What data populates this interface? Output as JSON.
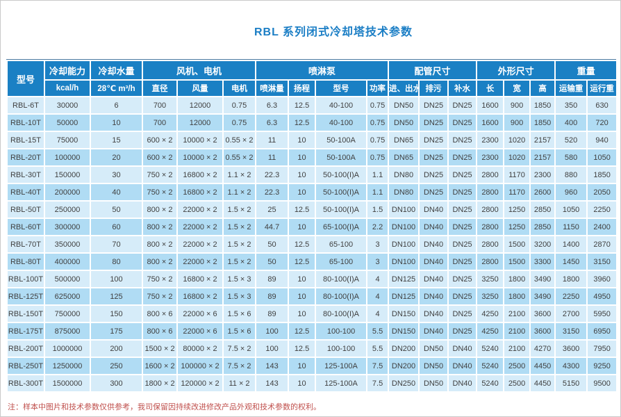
{
  "page": {
    "title": "RBL 系列闭式冷却塔技术参数",
    "footnote": "注：样本中图片和技术参数仅供参考，我司保留因持续改进修改产品外观和技术参数的权利。"
  },
  "colors": {
    "header_bg": "#1a80c4",
    "row_light": "#d6ecf9",
    "row_dark": "#b0dcf4",
    "title_text": "#1b7ec5",
    "note_text": "#c0504d"
  },
  "table": {
    "header_groups": [
      {
        "label": "型号",
        "colspan": 1,
        "rowspan": 2
      },
      {
        "label": "冷却能力",
        "colspan": 1,
        "rowspan": 1
      },
      {
        "label": "冷却水量",
        "colspan": 1,
        "rowspan": 1
      },
      {
        "label": "风机、电机",
        "colspan": 3,
        "rowspan": 1
      },
      {
        "label": "喷淋泵",
        "colspan": 4,
        "rowspan": 1
      },
      {
        "label": "配管尺寸",
        "colspan": 3,
        "rowspan": 1
      },
      {
        "label": "外形尺寸",
        "colspan": 3,
        "rowspan": 1
      },
      {
        "label": "重量",
        "colspan": 2,
        "rowspan": 1
      }
    ],
    "header_subs": [
      "kcal/h",
      "28℃ m³/h",
      "直径",
      "风量",
      "电机",
      "喷淋量",
      "扬程",
      "型号",
      "功率",
      "进、出水",
      "排污",
      "补水",
      "长",
      "宽",
      "高",
      "运输重",
      "运行重"
    ],
    "rows": [
      [
        "RBL-6T",
        "30000",
        "6",
        "700",
        "12000",
        "0.75",
        "6.3",
        "12.5",
        "40-100",
        "0.75",
        "DN50",
        "DN25",
        "DN25",
        "1600",
        "900",
        "1850",
        "350",
        "630"
      ],
      [
        "RBL-10T",
        "50000",
        "10",
        "700",
        "12000",
        "0.75",
        "6.3",
        "12.5",
        "40-100",
        "0.75",
        "DN50",
        "DN25",
        "DN25",
        "1600",
        "900",
        "1850",
        "400",
        "720"
      ],
      [
        "RBL-15T",
        "75000",
        "15",
        "600 × 2",
        "10000 × 2",
        "0.55 × 2",
        "11",
        "10",
        "50-100A",
        "0.75",
        "DN65",
        "DN25",
        "DN25",
        "2300",
        "1020",
        "2157",
        "520",
        "940"
      ],
      [
        "RBL-20T",
        "100000",
        "20",
        "600 × 2",
        "10000 × 2",
        "0.55 × 2",
        "11",
        "10",
        "50-100A",
        "0.75",
        "DN65",
        "DN25",
        "DN25",
        "2300",
        "1020",
        "2157",
        "580",
        "1050"
      ],
      [
        "RBL-30T",
        "150000",
        "30",
        "750 × 2",
        "16800 × 2",
        "1.1 × 2",
        "22.3",
        "10",
        "50-100(I)A",
        "1.1",
        "DN80",
        "DN25",
        "DN25",
        "2800",
        "1170",
        "2300",
        "880",
        "1850"
      ],
      [
        "RBL-40T",
        "200000",
        "40",
        "750 × 2",
        "16800 × 2",
        "1.1 × 2",
        "22.3",
        "10",
        "50-100(I)A",
        "1.1",
        "DN80",
        "DN25",
        "DN25",
        "2800",
        "1170",
        "2600",
        "960",
        "2050"
      ],
      [
        "RBL-50T",
        "250000",
        "50",
        "800 × 2",
        "22000 × 2",
        "1.5 × 2",
        "25",
        "12.5",
        "50-100(I)A",
        "1.5",
        "DN100",
        "DN40",
        "DN25",
        "2800",
        "1250",
        "2850",
        "1050",
        "2250"
      ],
      [
        "RBL-60T",
        "300000",
        "60",
        "800 × 2",
        "22000 × 2",
        "1.5 × 2",
        "44.7",
        "10",
        "65-100(I)A",
        "2.2",
        "DN100",
        "DN40",
        "DN25",
        "2800",
        "1250",
        "2850",
        "1150",
        "2400"
      ],
      [
        "RBL-70T",
        "350000",
        "70",
        "800 × 2",
        "22000 × 2",
        "1.5 × 2",
        "50",
        "12.5",
        "65-100",
        "3",
        "DN100",
        "DN40",
        "DN25",
        "2800",
        "1500",
        "3200",
        "1400",
        "2870"
      ],
      [
        "RBL-80T",
        "400000",
        "80",
        "800 × 2",
        "22000 × 2",
        "1.5 × 2",
        "50",
        "12.5",
        "65-100",
        "3",
        "DN100",
        "DN40",
        "DN25",
        "2800",
        "1500",
        "3300",
        "1450",
        "3150"
      ],
      [
        "RBL-100T",
        "500000",
        "100",
        "750 × 2",
        "16800 × 2",
        "1.5 × 3",
        "89",
        "10",
        "80-100(I)A",
        "4",
        "DN125",
        "DN40",
        "DN25",
        "3250",
        "1800",
        "3490",
        "1800",
        "3960"
      ],
      [
        "RBL-125T",
        "625000",
        "125",
        "750 × 2",
        "16800 × 2",
        "1.5 × 3",
        "89",
        "10",
        "80-100(I)A",
        "4",
        "DN125",
        "DN40",
        "DN25",
        "3250",
        "1800",
        "3490",
        "2250",
        "4950"
      ],
      [
        "RBL-150T",
        "750000",
        "150",
        "800 × 6",
        "22000 × 6",
        "1.5 × 6",
        "89",
        "10",
        "80-100(I)A",
        "4",
        "DN150",
        "DN40",
        "DN25",
        "4250",
        "2100",
        "3600",
        "2700",
        "5950"
      ],
      [
        "RBL-175T",
        "875000",
        "175",
        "800 × 6",
        "22000 × 6",
        "1.5 × 6",
        "100",
        "12.5",
        "100-100",
        "5.5",
        "DN150",
        "DN40",
        "DN25",
        "4250",
        "2100",
        "3600",
        "3150",
        "6950"
      ],
      [
        "RBL-200T",
        "1000000",
        "200",
        "1500 × 2",
        "80000 × 2",
        "7.5 × 2",
        "100",
        "12.5",
        "100-100",
        "5.5",
        "DN200",
        "DN50",
        "DN40",
        "5240",
        "2100",
        "4270",
        "3600",
        "7950"
      ],
      [
        "RBL-250T",
        "1250000",
        "250",
        "1600 × 2",
        "100000 × 2",
        "7.5 × 2",
        "143",
        "10",
        "125-100A",
        "7.5",
        "DN200",
        "DN50",
        "DN40",
        "5240",
        "2500",
        "4450",
        "4300",
        "9250"
      ],
      [
        "RBL-300T",
        "1500000",
        "300",
        "1800 × 2",
        "120000 × 2",
        "11 × 2",
        "143",
        "10",
        "125-100A",
        "7.5",
        "DN250",
        "DN50",
        "DN40",
        "5240",
        "2500",
        "4450",
        "5150",
        "9500"
      ]
    ]
  }
}
